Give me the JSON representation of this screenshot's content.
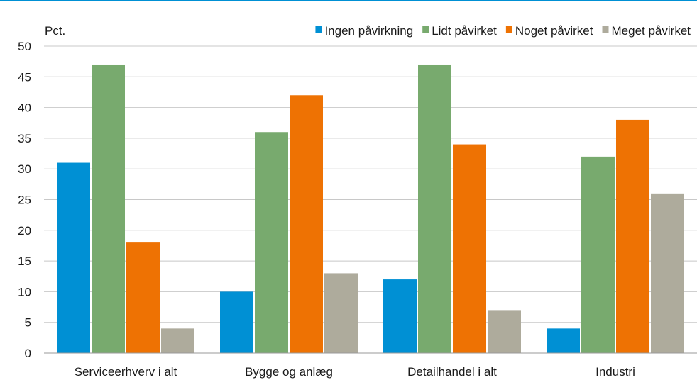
{
  "colors": {
    "top_rule": "#0090d4",
    "grid": "#c8c8c8",
    "axis": "#9a9a9a"
  },
  "chart_data": {
    "type": "bar",
    "unit_label": "Pct.",
    "categories": [
      "Serviceerhverv i alt",
      "Bygge og anlæg",
      "Detailhandel i alt",
      "Industri"
    ],
    "series": [
      {
        "name": "Ingen påvirkning",
        "color": "#0090d4",
        "values": [
          31,
          10,
          12,
          4
        ]
      },
      {
        "name": "Lidt påvirket",
        "color": "#78aa6e",
        "values": [
          47,
          36,
          47,
          32
        ]
      },
      {
        "name": "Noget påvirket",
        "color": "#ee7203",
        "values": [
          18,
          42,
          34,
          38
        ]
      },
      {
        "name": "Meget påvirket",
        "color": "#aeab9c",
        "values": [
          4,
          13,
          7,
          26
        ]
      }
    ],
    "ylim": [
      0,
      50
    ],
    "yticks": [
      0,
      5,
      10,
      15,
      20,
      25,
      30,
      35,
      40,
      45,
      50
    ],
    "grid": true,
    "legend_position": "top-right"
  }
}
